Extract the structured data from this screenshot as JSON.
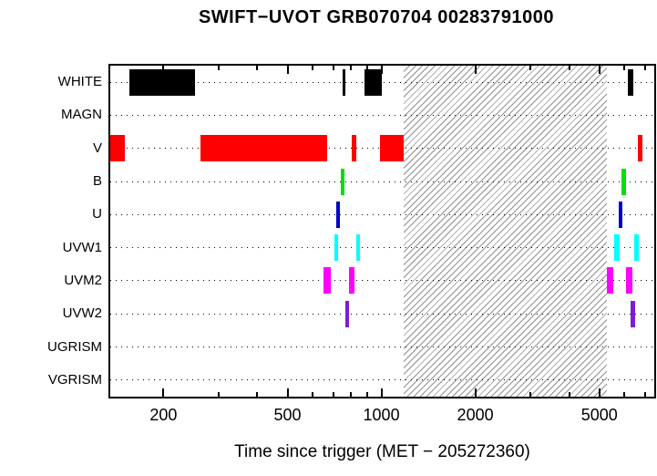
{
  "title": "SWIFT−UVOT GRB070704 00283791000",
  "xlabel": "Time since trigger (MET − 205272360)",
  "chart_data": {
    "type": "timeline-bars",
    "title": "SWIFT−UVOT GRB070704 00283791000",
    "xlabel": "Time since trigger (MET − 205272360)",
    "x_scale": "log",
    "x_range": [
      135,
      7500
    ],
    "x_major_ticks": [
      200,
      500,
      1000,
      2000,
      5000
    ],
    "x_minor_ticks": [
      300,
      400,
      600,
      700,
      800,
      900,
      3000,
      4000,
      6000,
      7000
    ],
    "grid": "dotted-horizontal",
    "legend": "none",
    "hatched_region": [
      1180,
      5270
    ],
    "rows": [
      {
        "label": "WHITE",
        "color": "#000000",
        "intervals": [
          [
            155,
            253
          ],
          [
            752,
            768
          ],
          [
            880,
            1000
          ],
          [
            6180,
            6430
          ]
        ]
      },
      {
        "label": "MAGN",
        "color": "#000000",
        "intervals": []
      },
      {
        "label": "V",
        "color": "#ff0000",
        "intervals": [
          [
            135,
            150
          ],
          [
            262,
            670
          ],
          [
            805,
            828
          ],
          [
            990,
            1180
          ],
          [
            6650,
            6880
          ]
        ]
      },
      {
        "label": "B",
        "color": "#00e00a",
        "intervals": [
          [
            742,
            763
          ],
          [
            5900,
            6100
          ]
        ]
      },
      {
        "label": "U",
        "color": "#0000cd",
        "intervals": [
          [
            718,
            737
          ],
          [
            5750,
            5940
          ]
        ]
      },
      {
        "label": "UVW1",
        "color": "#00ffff",
        "intervals": [
          [
            709,
            728
          ],
          [
            832,
            855
          ],
          [
            5590,
            5790
          ],
          [
            6480,
            6700
          ]
        ]
      },
      {
        "label": "UVM2",
        "color": "#ff00ff",
        "intervals": [
          [
            654,
            690
          ],
          [
            788,
            821
          ],
          [
            5270,
            5550
          ],
          [
            6100,
            6400
          ]
        ]
      },
      {
        "label": "UVW2",
        "color": "#7a1fd2",
        "intervals": [
          [
            768,
            788
          ],
          [
            6310,
            6520
          ]
        ]
      },
      {
        "label": "UGRISM",
        "color": "#000000",
        "intervals": []
      },
      {
        "label": "VGRISM",
        "color": "#000000",
        "intervals": []
      }
    ]
  }
}
